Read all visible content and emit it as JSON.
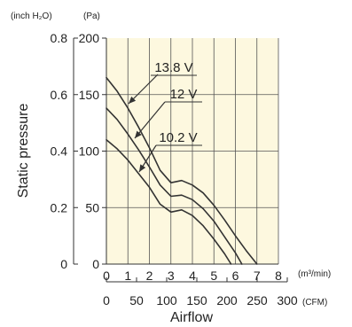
{
  "chart_data": {
    "type": "line",
    "xlabel": "Airflow",
    "ylabel": "Static pressure",
    "y_unit_left": "(inch H₂O)",
    "y_unit_right": "(Pa)",
    "x_unit_top": "(m³/min)",
    "x_unit_bottom": "(CFM)",
    "xlim": [
      0,
      8
    ],
    "ylim": [
      0,
      200
    ],
    "x_ticks": [
      1,
      2,
      3,
      4,
      5,
      6,
      7,
      8
    ],
    "x_tick_labels": [
      "1",
      "2",
      "3",
      "4",
      "5",
      "6",
      "7",
      "8"
    ],
    "x_zero_label": "0",
    "y_ticks_pa": [
      0,
      50,
      100,
      150,
      200
    ],
    "y_tick_labels_pa": [
      "0",
      "50",
      "100",
      "150",
      "200"
    ],
    "y_tick_labels_inch": [
      "0",
      "0.2",
      "0.4",
      "0.6",
      "0.8"
    ],
    "cfm_ticks": [
      0,
      50,
      100,
      150,
      200,
      250,
      300
    ],
    "cfm_tick_labels": [
      "0",
      "50",
      "100",
      "150",
      "200",
      "250",
      "300"
    ],
    "grid": true,
    "background": "#fdf8df",
    "line_color": "#333333",
    "series": [
      {
        "name": "13.8 V",
        "x": [
          0,
          0.5,
          1,
          1.5,
          2,
          2.5,
          3,
          3.5,
          4,
          4.5,
          5,
          5.5,
          6,
          6.5,
          7
        ],
        "y": [
          165,
          153,
          138,
          121,
          103,
          83,
          72,
          74,
          70,
          63,
          52,
          39,
          25,
          12,
          0
        ]
      },
      {
        "name": "12 V",
        "x": [
          0,
          0.5,
          1,
          1.5,
          2,
          2.5,
          3,
          3.5,
          4,
          4.5,
          5,
          5.5,
          6,
          6.3
        ],
        "y": [
          138,
          128,
          115,
          101,
          86,
          70,
          60,
          61,
          57,
          49,
          38,
          24,
          10,
          0
        ]
      },
      {
        "name": "10.2 V",
        "x": [
          0,
          0.5,
          1,
          1.5,
          2,
          2.5,
          3,
          3.5,
          4,
          4.5,
          5,
          5.5,
          5.8
        ],
        "y": [
          110,
          102,
          92,
          80,
          68,
          53,
          46,
          48,
          43,
          34,
          22,
          9,
          0
        ]
      }
    ]
  }
}
